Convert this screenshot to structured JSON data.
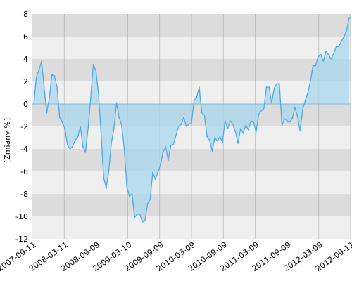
{
  "chart_data": {
    "type": "area",
    "ylabel": "[Zmiany %]",
    "xlabel": "",
    "title": "",
    "ylim": [
      -12,
      8
    ],
    "yticks": [
      8,
      6,
      4,
      2,
      0,
      -2,
      -4,
      -6,
      -8,
      -10,
      -12
    ],
    "xticks": [
      "2007-09-11",
      "2008-03-11",
      "2008-09-09",
      "2009-03-10",
      "2009-09-09",
      "2010-03-09",
      "2010-09-09",
      "2011-03-09",
      "2011-09-09",
      "2012-03-09",
      "2012-09-11"
    ],
    "grid": true,
    "colors": {
      "line": "#4ea8e8",
      "fill": "#a9d8ef",
      "band_dark": "#dcdcdc",
      "band_light": "#efefef",
      "zero_line": "#6aaed6",
      "vertical_grid": "#aaaaaa"
    },
    "series": [
      {
        "values": [
          0,
          2.4,
          3.0,
          3.8,
          1.5,
          -0.8,
          0.5,
          2.6,
          2.5,
          1.5,
          -1.2,
          -1.6,
          -2.2,
          -3.6,
          -4.0,
          -3.8,
          -3.2,
          -3.0,
          -2.0,
          -3.8,
          -4.3,
          -2.2,
          0.5,
          3.5,
          3.0,
          1.0,
          -2.5,
          -6.5,
          -7.5,
          -6.0,
          -3.5,
          -2.2,
          0.1,
          -1.2,
          -1.9,
          -4.0,
          -7.4,
          -8.2,
          -8.0,
          -10.1,
          -9.8,
          -9.8,
          -10.5,
          -10.4,
          -8.9,
          -8.5,
          -6.1,
          -6.7,
          -6.1,
          -5.4,
          -4.3,
          -3.8,
          -5.0,
          -3.7,
          -3.6,
          -2.8,
          -2.0,
          -1.8,
          -1.2,
          -2.0,
          -1.8,
          -1.7,
          0.3,
          0.6,
          1.5,
          -0.8,
          -1.0,
          -2.9,
          -3.2,
          -4.2,
          -3.0,
          -3.3,
          -2.9,
          -3.4,
          -1.5,
          -2.2,
          -1.5,
          -1.8,
          -2.5,
          -3.5,
          -2.2,
          -2.6,
          -1.9,
          -2.3,
          -1.5,
          -1.6,
          -2.5,
          -0.9,
          -0.6,
          -0.4,
          1.5,
          1.5,
          0.1,
          1.4,
          1.8,
          1.8,
          -1.9,
          -1.3,
          -1.5,
          -1.6,
          -1.3,
          -0.3,
          -1.1,
          -2.4,
          -0.5,
          0.3,
          1.0,
          2.0,
          3.4,
          3.4,
          4.2,
          4.4,
          3.8,
          4.7,
          4.4,
          4.0,
          4.5,
          5.1,
          5.1,
          5.6,
          6.0,
          6.5,
          7.7
        ]
      }
    ]
  }
}
